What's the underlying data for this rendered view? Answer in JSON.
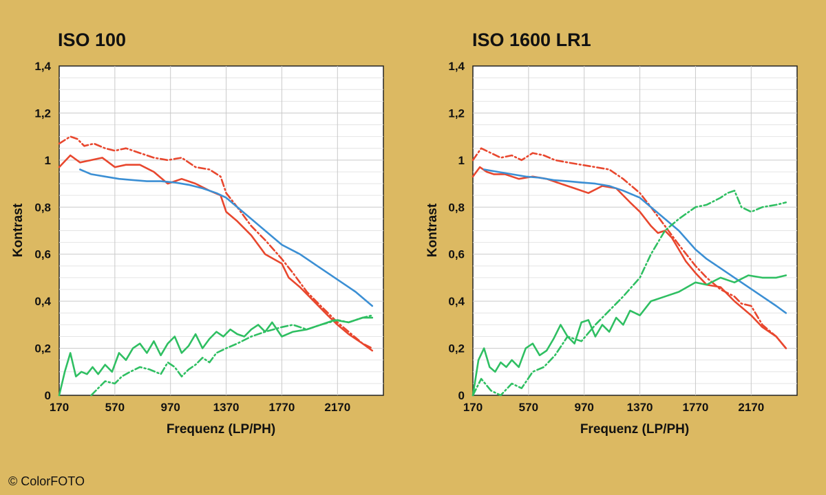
{
  "copyright": "© ColorFOTO",
  "colors": {
    "background": "#dcb962",
    "red": "#e8472e",
    "blue": "#3b8fd4",
    "green": "#2fbf62"
  },
  "chart_data": [
    {
      "type": "line",
      "title": "ISO 100",
      "xlabel": "Frequenz (LP/PH)",
      "ylabel": "Kontrast",
      "xlim": [
        170,
        2500
      ],
      "ylim": [
        0,
        1.4
      ],
      "xticks": [
        170,
        570,
        970,
        1370,
        1770,
        2170
      ],
      "xtick_labels": [
        "170",
        "570",
        "970",
        "1370",
        "1770",
        "2170"
      ],
      "yticks": [
        0,
        0.2,
        0.4,
        0.6,
        0.8,
        1,
        1.2,
        1.4
      ],
      "ytick_labels": [
        "0",
        "0,2",
        "0,4",
        "0,6",
        "0,8",
        "1",
        "1,2",
        "1,4"
      ],
      "grid": true,
      "series": [
        {
          "name": "red-dashed",
          "color": "#e8472e",
          "style": "dashdot",
          "x": [
            170,
            250,
            300,
            350,
            420,
            500,
            570,
            650,
            750,
            850,
            950,
            1050,
            1150,
            1250,
            1330,
            1370,
            1450,
            1550,
            1650,
            1770,
            1850,
            1950,
            2050,
            2170,
            2250,
            2350,
            2420
          ],
          "y": [
            1.07,
            1.1,
            1.09,
            1.06,
            1.07,
            1.05,
            1.04,
            1.05,
            1.03,
            1.01,
            1.0,
            1.01,
            0.97,
            0.96,
            0.93,
            0.86,
            0.8,
            0.72,
            0.66,
            0.58,
            0.52,
            0.44,
            0.38,
            0.31,
            0.27,
            0.22,
            0.2
          ]
        },
        {
          "name": "red-solid",
          "color": "#e8472e",
          "style": "solid",
          "x": [
            170,
            250,
            320,
            400,
            480,
            570,
            650,
            750,
            850,
            950,
            1050,
            1150,
            1250,
            1330,
            1370,
            1450,
            1550,
            1650,
            1770,
            1820,
            1900,
            2000,
            2100,
            2170,
            2250,
            2350,
            2420
          ],
          "y": [
            0.97,
            1.02,
            0.99,
            1.0,
            1.01,
            0.97,
            0.98,
            0.98,
            0.95,
            0.9,
            0.92,
            0.9,
            0.87,
            0.85,
            0.78,
            0.74,
            0.68,
            0.6,
            0.56,
            0.5,
            0.46,
            0.4,
            0.34,
            0.3,
            0.26,
            0.22,
            0.19
          ]
        },
        {
          "name": "blue",
          "color": "#3b8fd4",
          "style": "solid",
          "x": [
            320,
            400,
            500,
            600,
            700,
            800,
            900,
            1000,
            1100,
            1200,
            1300,
            1370,
            1450,
            1550,
            1650,
            1770,
            1900,
            2000,
            2100,
            2200,
            2300,
            2420
          ],
          "y": [
            0.96,
            0.94,
            0.93,
            0.92,
            0.915,
            0.91,
            0.91,
            0.905,
            0.895,
            0.88,
            0.86,
            0.84,
            0.8,
            0.75,
            0.7,
            0.64,
            0.6,
            0.56,
            0.52,
            0.48,
            0.44,
            0.38
          ]
        },
        {
          "name": "green-solid",
          "color": "#2fbf62",
          "style": "solid",
          "x": [
            170,
            210,
            250,
            290,
            330,
            370,
            410,
            450,
            500,
            550,
            600,
            650,
            700,
            750,
            800,
            850,
            900,
            950,
            1000,
            1050,
            1100,
            1150,
            1200,
            1250,
            1300,
            1350,
            1400,
            1450,
            1500,
            1550,
            1600,
            1650,
            1700,
            1770,
            1850,
            1950,
            2050,
            2150,
            2250,
            2350,
            2420
          ],
          "y": [
            0.0,
            0.1,
            0.18,
            0.08,
            0.1,
            0.09,
            0.12,
            0.09,
            0.13,
            0.1,
            0.18,
            0.15,
            0.2,
            0.22,
            0.18,
            0.23,
            0.17,
            0.22,
            0.25,
            0.18,
            0.21,
            0.26,
            0.2,
            0.24,
            0.27,
            0.25,
            0.28,
            0.26,
            0.25,
            0.28,
            0.3,
            0.27,
            0.31,
            0.25,
            0.27,
            0.28,
            0.3,
            0.32,
            0.31,
            0.33,
            0.33
          ]
        },
        {
          "name": "green-dashed",
          "color": "#2fbf62",
          "style": "dashdot",
          "x": [
            400,
            450,
            500,
            570,
            620,
            680,
            750,
            820,
            900,
            950,
            1000,
            1050,
            1100,
            1150,
            1200,
            1250,
            1300,
            1370,
            1450,
            1550,
            1650,
            1770,
            1850,
            1950,
            2050,
            2170,
            2250,
            2350,
            2420
          ],
          "y": [
            0.0,
            0.03,
            0.06,
            0.05,
            0.08,
            0.1,
            0.12,
            0.11,
            0.09,
            0.14,
            0.12,
            0.08,
            0.11,
            0.13,
            0.16,
            0.14,
            0.18,
            0.2,
            0.22,
            0.25,
            0.27,
            0.29,
            0.3,
            0.28,
            0.3,
            0.32,
            0.31,
            0.33,
            0.34
          ]
        }
      ]
    },
    {
      "type": "line",
      "title": "ISO 1600 LR1",
      "xlabel": "Frequenz (LP/PH)",
      "ylabel": "Kontrast",
      "xlim": [
        170,
        2500
      ],
      "ylim": [
        0,
        1.4
      ],
      "xticks": [
        170,
        570,
        970,
        1370,
        1770,
        2170
      ],
      "xtick_labels": [
        "170",
        "570",
        "970",
        "1370",
        "1770",
        "2170"
      ],
      "yticks": [
        0,
        0.2,
        0.4,
        0.6,
        0.8,
        1,
        1.2,
        1.4
      ],
      "ytick_labels": [
        "0",
        "0,2",
        "0,4",
        "0,6",
        "0,8",
        "1",
        "1,2",
        "1,4"
      ],
      "grid": true,
      "series": [
        {
          "name": "red-dashed",
          "color": "#e8472e",
          "style": "dashdot",
          "x": [
            170,
            230,
            300,
            370,
            450,
            520,
            600,
            680,
            760,
            850,
            950,
            1050,
            1150,
            1250,
            1370,
            1450,
            1550,
            1650,
            1770,
            1850,
            1950,
            2050,
            2100,
            2170,
            2250,
            2350,
            2420
          ],
          "y": [
            1.0,
            1.05,
            1.03,
            1.01,
            1.02,
            1.0,
            1.03,
            1.02,
            1.0,
            0.99,
            0.98,
            0.97,
            0.96,
            0.92,
            0.86,
            0.8,
            0.72,
            0.64,
            0.55,
            0.5,
            0.45,
            0.42,
            0.39,
            0.38,
            0.3,
            0.25,
            0.2
          ]
        },
        {
          "name": "red-solid",
          "color": "#e8472e",
          "style": "solid",
          "x": [
            170,
            220,
            270,
            320,
            400,
            500,
            600,
            700,
            800,
            900,
            1000,
            1100,
            1200,
            1300,
            1370,
            1450,
            1500,
            1550,
            1600,
            1650,
            1700,
            1770,
            1850,
            1950,
            2050,
            2170,
            2250,
            2350,
            2420
          ],
          "y": [
            0.93,
            0.97,
            0.95,
            0.94,
            0.94,
            0.92,
            0.93,
            0.92,
            0.9,
            0.88,
            0.86,
            0.89,
            0.88,
            0.82,
            0.78,
            0.72,
            0.69,
            0.7,
            0.67,
            0.62,
            0.57,
            0.52,
            0.47,
            0.46,
            0.4,
            0.34,
            0.29,
            0.25,
            0.2
          ]
        },
        {
          "name": "blue",
          "color": "#3b8fd4",
          "style": "solid",
          "x": [
            250,
            350,
            450,
            550,
            650,
            750,
            850,
            950,
            1050,
            1150,
            1250,
            1370,
            1450,
            1550,
            1650,
            1770,
            1850,
            1950,
            2050,
            2150,
            2250,
            2350,
            2420
          ],
          "y": [
            0.96,
            0.95,
            0.94,
            0.93,
            0.925,
            0.915,
            0.91,
            0.905,
            0.9,
            0.89,
            0.87,
            0.84,
            0.8,
            0.75,
            0.7,
            0.62,
            0.58,
            0.54,
            0.5,
            0.46,
            0.42,
            0.38,
            0.35
          ]
        },
        {
          "name": "green-solid",
          "color": "#2fbf62",
          "style": "solid",
          "x": [
            170,
            210,
            250,
            290,
            330,
            370,
            410,
            450,
            500,
            550,
            600,
            650,
            700,
            750,
            800,
            850,
            900,
            950,
            1000,
            1050,
            1100,
            1150,
            1200,
            1250,
            1300,
            1370,
            1450,
            1550,
            1650,
            1770,
            1850,
            1950,
            2050,
            2150,
            2250,
            2350,
            2420
          ],
          "y": [
            0.0,
            0.15,
            0.2,
            0.12,
            0.1,
            0.14,
            0.12,
            0.15,
            0.12,
            0.2,
            0.22,
            0.17,
            0.19,
            0.24,
            0.3,
            0.25,
            0.22,
            0.31,
            0.32,
            0.25,
            0.3,
            0.27,
            0.33,
            0.3,
            0.36,
            0.34,
            0.4,
            0.42,
            0.44,
            0.48,
            0.47,
            0.5,
            0.48,
            0.51,
            0.5,
            0.5,
            0.51
          ]
        },
        {
          "name": "green-dashed",
          "color": "#2fbf62",
          "style": "dashdot",
          "x": [
            170,
            230,
            300,
            370,
            450,
            520,
            600,
            680,
            760,
            850,
            950,
            1050,
            1150,
            1250,
            1370,
            1450,
            1550,
            1650,
            1770,
            1850,
            1950,
            2000,
            2050,
            2100,
            2170,
            2250,
            2350,
            2420
          ],
          "y": [
            0.0,
            0.07,
            0.02,
            0.0,
            0.05,
            0.03,
            0.1,
            0.12,
            0.17,
            0.25,
            0.23,
            0.3,
            0.36,
            0.42,
            0.5,
            0.6,
            0.7,
            0.75,
            0.8,
            0.81,
            0.84,
            0.86,
            0.87,
            0.8,
            0.78,
            0.8,
            0.81,
            0.82
          ]
        }
      ]
    }
  ]
}
